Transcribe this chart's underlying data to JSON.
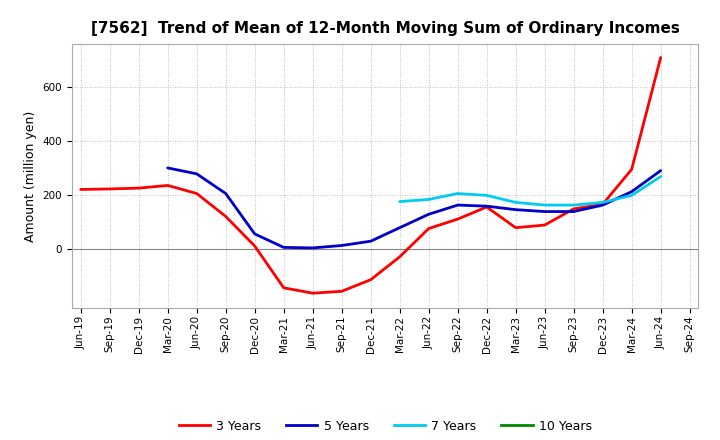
{
  "title": "[7562]  Trend of Mean of 12-Month Moving Sum of Ordinary Incomes",
  "ylabel": "Amount (million yen)",
  "background_color": "#ffffff",
  "grid_color": "#aaaaaa",
  "x_labels": [
    "Jun-19",
    "Sep-19",
    "Dec-19",
    "Mar-20",
    "Jun-20",
    "Sep-20",
    "Dec-20",
    "Mar-21",
    "Jun-21",
    "Sep-21",
    "Dec-21",
    "Mar-22",
    "Jun-22",
    "Sep-22",
    "Dec-22",
    "Mar-23",
    "Jun-23",
    "Sep-23",
    "Dec-23",
    "Mar-24",
    "Jun-24",
    "Sep-24"
  ],
  "series": {
    "3 Years": {
      "color": "#ff0000",
      "linewidth": 2.0,
      "values": [
        220,
        222,
        225,
        235,
        205,
        120,
        10,
        -145,
        -165,
        -158,
        -115,
        -30,
        75,
        110,
        155,
        78,
        88,
        148,
        165,
        295,
        710,
        null
      ]
    },
    "5 Years": {
      "color": "#0000cc",
      "linewidth": 2.0,
      "values": [
        null,
        null,
        null,
        300,
        278,
        205,
        55,
        5,
        3,
        12,
        28,
        78,
        128,
        162,
        158,
        145,
        138,
        138,
        162,
        212,
        290,
        null
      ]
    },
    "7 Years": {
      "color": "#00ccee",
      "linewidth": 2.0,
      "values": [
        null,
        null,
        null,
        null,
        null,
        null,
        null,
        null,
        null,
        null,
        null,
        175,
        183,
        205,
        198,
        172,
        162,
        162,
        172,
        198,
        268,
        null
      ]
    },
    "10 Years": {
      "color": "#008800",
      "linewidth": 2.0,
      "values": [
        null,
        null,
        null,
        null,
        null,
        null,
        null,
        null,
        null,
        null,
        null,
        null,
        null,
        null,
        null,
        null,
        null,
        null,
        null,
        null,
        null,
        null
      ]
    }
  },
  "ylim": [
    -220,
    760
  ],
  "yticks": [
    0,
    200,
    400,
    600
  ],
  "legend_labels": [
    "3 Years",
    "5 Years",
    "7 Years",
    "10 Years"
  ],
  "legend_colors": [
    "#ff0000",
    "#0000cc",
    "#00ccee",
    "#008800"
  ],
  "title_fontsize": 11,
  "ylabel_fontsize": 9,
  "tick_fontsize": 7.5
}
